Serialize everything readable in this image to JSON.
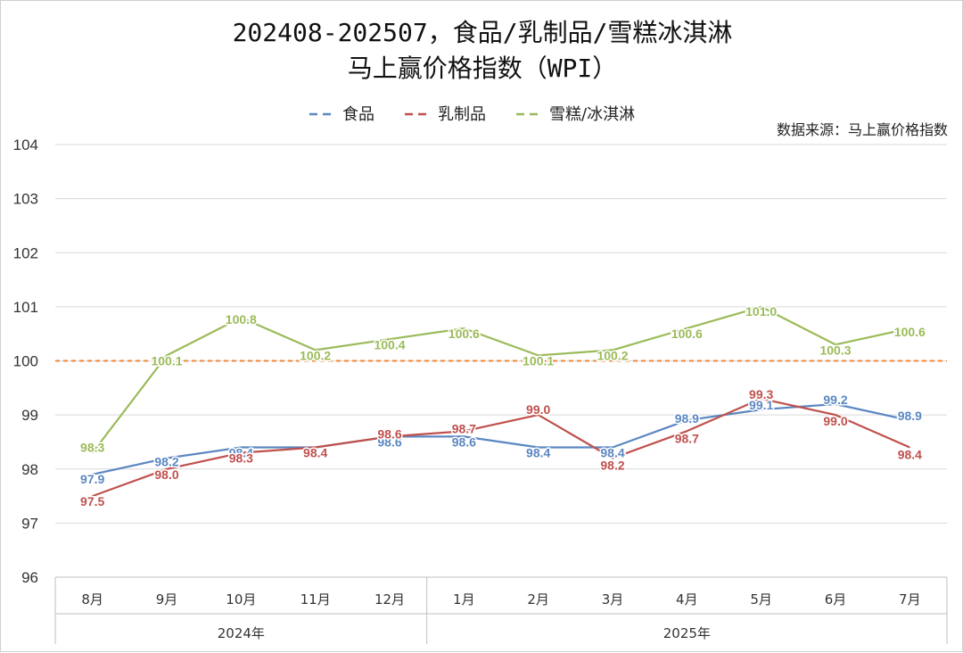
{
  "chart_data": {
    "type": "line",
    "title_line1": "202408-202507，食品/乳制品/雪糕冰淇淋",
    "title_line2": "马上赢价格指数（WPI）",
    "source": "数据来源：马上赢价格指数",
    "categories": [
      "8月",
      "9月",
      "10月",
      "11月",
      "12月",
      "1月",
      "2月",
      "3月",
      "4月",
      "5月",
      "6月",
      "7月"
    ],
    "groups": [
      {
        "label": "2024年",
        "start": 0,
        "end": 4
      },
      {
        "label": "2025年",
        "start": 5,
        "end": 11
      }
    ],
    "ylim": [
      96,
      104
    ],
    "yticks": [
      96,
      97,
      98,
      99,
      100,
      101,
      102,
      103,
      104
    ],
    "reference_line": {
      "value": 100,
      "color": "#f0883a"
    },
    "grid": true,
    "legend_position": "top-center",
    "series": [
      {
        "name": "食品",
        "color": "#5b87c2",
        "values": [
          97.9,
          98.2,
          98.4,
          98.4,
          98.6,
          98.6,
          98.4,
          98.4,
          98.9,
          99.1,
          99.2,
          98.9
        ],
        "labels": [
          "97.9",
          "98.2",
          "98.4",
          "98.4",
          "98.6",
          "98.6",
          "98.4",
          "98.4",
          "98.9",
          "99.1",
          "99.2",
          "98.9"
        ]
      },
      {
        "name": "乳制品",
        "color": "#c0504d",
        "values": [
          97.5,
          98.0,
          98.3,
          98.4,
          98.6,
          98.7,
          99.0,
          98.2,
          98.7,
          99.3,
          99.0,
          98.4
        ],
        "labels": [
          "97.5",
          "98.0",
          "98.3",
          "98.4",
          "98.6",
          "98.7",
          "99.0",
          "98.2",
          "98.7",
          "99.3",
          "99.0",
          "98.4"
        ]
      },
      {
        "name": "雪糕/冰淇淋",
        "color": "#9bbb59",
        "values": [
          98.3,
          100.1,
          100.8,
          100.2,
          100.4,
          100.6,
          100.1,
          100.2,
          100.6,
          101.0,
          100.3,
          100.6
        ],
        "labels": [
          "98.3",
          "100.1",
          "100.8",
          "100.2",
          "100.4",
          "100.6",
          "100.1",
          "100.2",
          "100.6",
          "101.0",
          "100.3",
          "100.6"
        ]
      }
    ]
  }
}
